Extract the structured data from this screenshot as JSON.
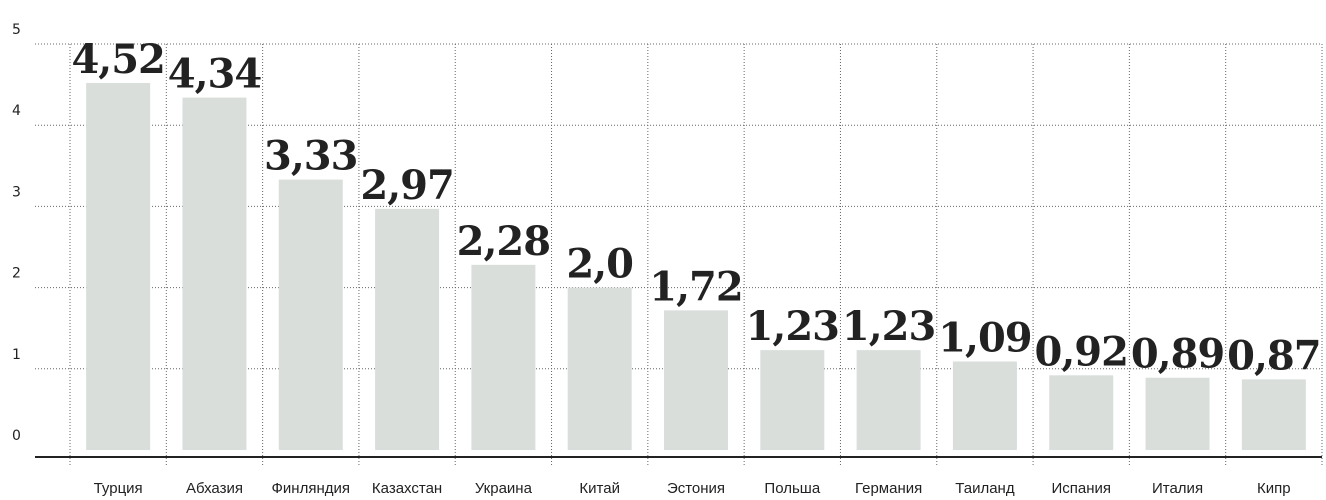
{
  "chart_data": {
    "type": "bar",
    "categories": [
      "Турция",
      "Абхазия",
      "Финляндия",
      "Казахстан",
      "Украина",
      "Китай",
      "Эстония",
      "Польша",
      "Германия",
      "Таиланд",
      "Испания",
      "Италия",
      "Кипр"
    ],
    "values": [
      4.52,
      4.34,
      3.33,
      2.97,
      2.28,
      2.0,
      1.72,
      1.23,
      1.23,
      1.09,
      0.92,
      0.89,
      0.87
    ],
    "value_labels": [
      "4,52",
      "4,34",
      "3,33",
      "2,97",
      "2,28",
      "2,0",
      "1,72",
      "1,23",
      "1,23",
      "1,09",
      "0,92",
      "0,89",
      "0,87"
    ],
    "color": "#d9dedb",
    "ylim": [
      0,
      5
    ],
    "yticks": [
      0,
      1,
      2,
      3,
      4,
      5
    ],
    "grid": true
  }
}
